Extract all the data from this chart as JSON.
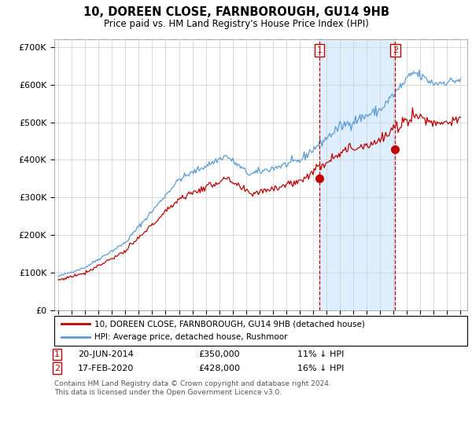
{
  "title": "10, DOREEN CLOSE, FARNBOROUGH, GU14 9HB",
  "subtitle": "Price paid vs. HM Land Registry's House Price Index (HPI)",
  "legend_line1": "10, DOREEN CLOSE, FARNBOROUGH, GU14 9HB (detached house)",
  "legend_line2": "HPI: Average price, detached house, Rushmoor",
  "sale1_date": "20-JUN-2014",
  "sale1_price": "£350,000",
  "sale1_hpi": "11% ↓ HPI",
  "sale2_date": "17-FEB-2020",
  "sale2_price": "£428,000",
  "sale2_hpi": "16% ↓ HPI",
  "footer": "Contains HM Land Registry data © Crown copyright and database right 2024.\nThis data is licensed under the Open Government Licence v3.0.",
  "hpi_color": "#5b9bd5",
  "price_color": "#c00000",
  "marker_color": "#c00000",
  "vline_color": "#c00000",
  "shade_color": "#ddeeff",
  "sale1_year": 2014.47,
  "sale2_year": 2020.12,
  "sale1_price_val": 350000,
  "sale2_price_val": 428000,
  "ylim": [
    0,
    720000
  ],
  "xlim_start": 1994.7,
  "xlim_end": 2025.5
}
